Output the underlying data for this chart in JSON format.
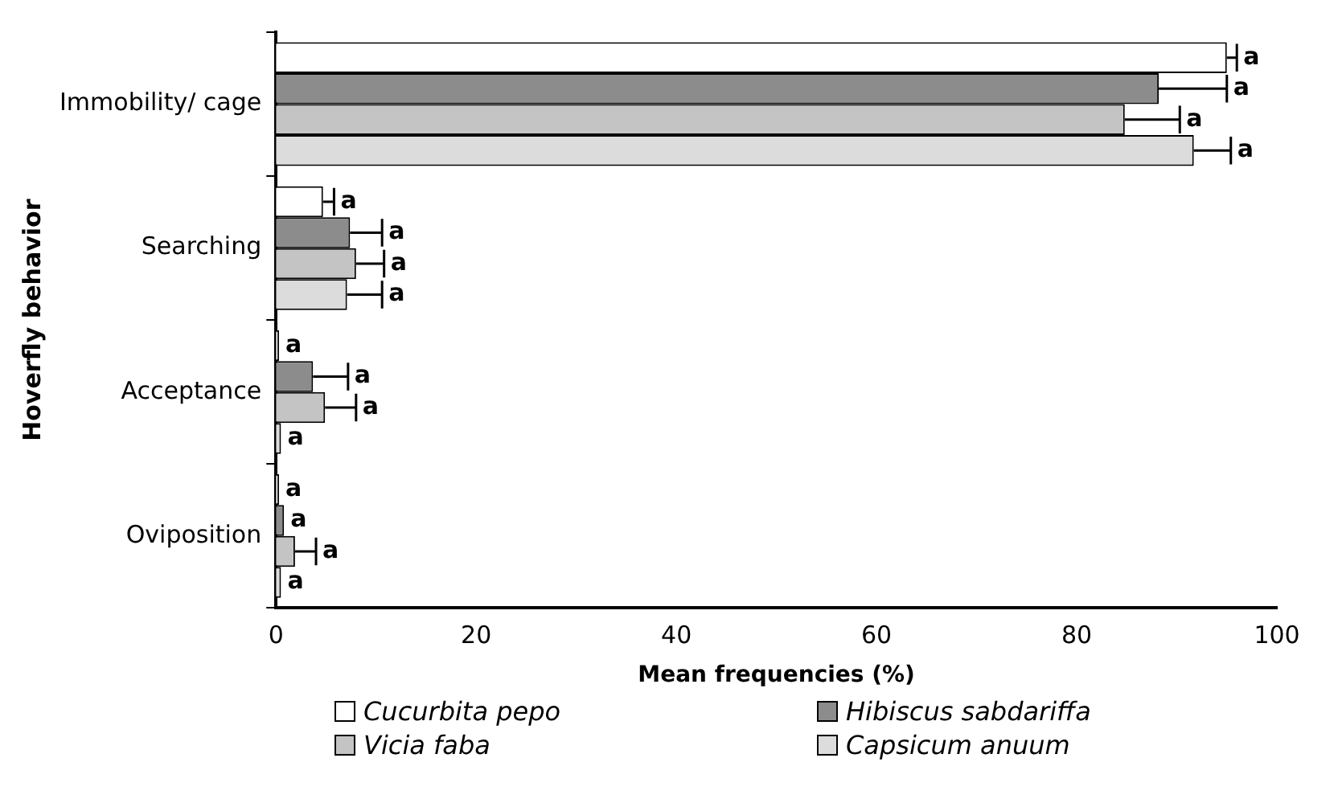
{
  "chart_data": {
    "type": "bar",
    "orientation": "horizontal",
    "xlabel": "Mean frequencies (%)",
    "ylabel": "Hoverfly behavior",
    "categories": [
      "Immobility/ cage",
      "Searching",
      "Acceptance",
      "Oviposition"
    ],
    "series": [
      {
        "name": "Cucurbita pepo",
        "color": "#ffffff",
        "values": [
          95.0,
          4.7,
          0.3,
          0.3
        ],
        "errors": [
          1.0,
          1.1,
          null,
          null
        ],
        "value_labels": [
          "a",
          "a",
          "a",
          "a"
        ]
      },
      {
        "name": "Hibiscus sabdariffa",
        "color": "#8c8c8c",
        "values": [
          88.2,
          7.4,
          3.7,
          0.8
        ],
        "errors": [
          6.8,
          3.2,
          3.5,
          null
        ],
        "value_labels": [
          "a",
          "a",
          "a",
          "a"
        ]
      },
      {
        "name": "Vicia faba",
        "color": "#c4c4c4",
        "values": [
          84.8,
          8.0,
          4.9,
          1.9
        ],
        "errors": [
          5.5,
          2.8,
          3.1,
          2.1
        ],
        "value_labels": [
          "a",
          "a",
          "a",
          "a"
        ]
      },
      {
        "name": "Capsicum anuum",
        "color": "#dcdcdc",
        "values": [
          91.7,
          7.1,
          0.5,
          0.5
        ],
        "errors": [
          3.7,
          3.5,
          null,
          null
        ],
        "value_labels": [
          "a",
          "a",
          "a",
          "a"
        ]
      }
    ],
    "xlim": [
      0,
      100
    ],
    "xticks": [
      0,
      20,
      40,
      60,
      80,
      100
    ],
    "grid": false,
    "legend": "bottom"
  }
}
